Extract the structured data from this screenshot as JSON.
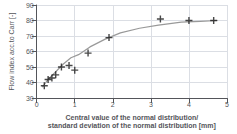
{
  "chart_data": {
    "type": "scatter",
    "xlabel": "Central value of the normal distribution/\nstandard deviation of the normal distribution [mm]",
    "ylabel": "Flow index acc.to Carr [-]",
    "series": [
      {
        "type": "line",
        "color": "#999999",
        "x": [
          0.15,
          0.3,
          0.5,
          0.7,
          0.9,
          1.1,
          1.4,
          1.8,
          2.2,
          2.7,
          3.2,
          3.8,
          4.3,
          4.75
        ],
        "values": [
          37,
          42,
          47,
          52,
          56,
          58,
          63,
          68,
          72,
          75,
          77,
          79,
          79.5,
          80
        ]
      },
      {
        "type": "scatter",
        "color": "#1a1a1a",
        "marker": "plus",
        "x": [
          0.2,
          0.3,
          0.4,
          0.5,
          0.65,
          0.85,
          1.0,
          1.35,
          1.9,
          3.25,
          4.0,
          4.65
        ],
        "values": [
          38,
          42,
          43,
          45,
          50,
          51,
          48,
          59,
          69,
          81,
          80,
          80
        ]
      }
    ],
    "xlim": [
      0,
      5
    ],
    "xticks": [
      0,
      1,
      2,
      3,
      4,
      5
    ],
    "ylim": [
      30,
      90
    ],
    "yticks": [
      30,
      40,
      50,
      60,
      70,
      80,
      90
    ],
    "grid": true
  }
}
